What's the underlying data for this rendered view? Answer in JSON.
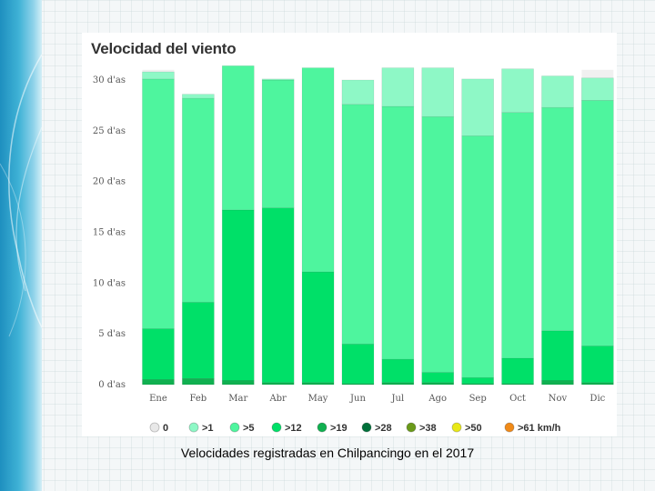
{
  "chart_data": {
    "type": "bar",
    "stacked": true,
    "title": "Velocidad del viento",
    "xlabel": "",
    "ylabel": "",
    "ylim": [
      0,
      30
    ],
    "yticks": [
      0,
      5,
      10,
      15,
      20,
      25,
      30
    ],
    "ytick_suffix": " d'as",
    "categories": [
      "Ene",
      "Feb",
      "Mar",
      "Abr",
      "May",
      "Jun",
      "Jul",
      "Ago",
      "Sep",
      "Oct",
      "Nov",
      "Dic"
    ],
    "month_days": [
      31,
      28,
      31,
      30,
      31,
      30,
      31,
      31,
      30,
      31,
      30,
      31
    ],
    "series": [
      {
        "name": "0",
        "color": "#e8e8e8",
        "values": [
          0,
          0,
          0,
          0,
          0,
          0,
          0,
          0,
          0,
          0,
          0,
          0
        ]
      },
      {
        "name": ">1",
        "color": "#8ef8c6",
        "values": [
          0.7,
          0.4,
          0,
          0.1,
          0,
          2.4,
          3.8,
          4.8,
          5.6,
          4.3,
          3.1,
          2.2
        ]
      },
      {
        "name": ">5",
        "color": "#4ef59e",
        "values": [
          24.6,
          20.1,
          14.2,
          12.6,
          20.1,
          23.6,
          24.9,
          25.2,
          23.8,
          24.2,
          22.0,
          24.2
        ]
      },
      {
        "name": ">12",
        "color": "#00e068",
        "values": [
          5.0,
          7.5,
          16.8,
          17.2,
          10.9,
          3.9,
          2.3,
          1.0,
          0.6,
          2.5,
          4.9,
          3.6
        ]
      },
      {
        "name": ">19",
        "color": "#10b050",
        "values": [
          0.5,
          0.6,
          0.4,
          0.2,
          0.2,
          0.1,
          0.2,
          0.2,
          0.1,
          0.1,
          0.4,
          0.2
        ]
      },
      {
        "name": ">28",
        "color": "#00703a",
        "values": [
          0,
          0,
          0,
          0,
          0,
          0,
          0,
          0,
          0,
          0,
          0,
          0
        ]
      },
      {
        "name": ">38",
        "color": "#6a9a1a",
        "values": [
          0,
          0,
          0,
          0,
          0,
          0,
          0,
          0,
          0,
          0,
          0,
          0
        ]
      },
      {
        "name": ">50",
        "color": "#e8e817",
        "values": [
          0,
          0,
          0,
          0,
          0,
          0,
          0,
          0,
          0,
          0,
          0,
          0
        ]
      },
      {
        "name": ">61 km/h",
        "color": "#f08a18",
        "values": [
          0,
          0,
          0,
          0,
          0,
          0,
          0,
          0,
          0,
          0,
          0,
          0
        ]
      }
    ],
    "legend_position": "bottom",
    "grid": false
  },
  "caption": "Velocidades registradas en Chilpancingo en el 2017"
}
